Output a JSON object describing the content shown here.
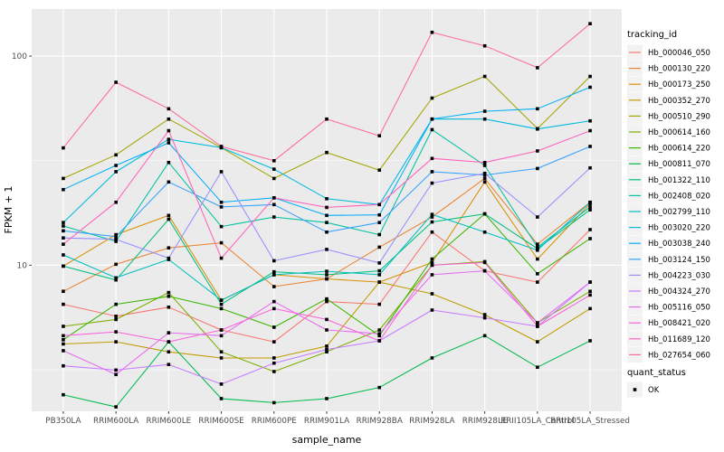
{
  "figure": {
    "background": "#FFFFFF",
    "panel_background": "#EBEBEB",
    "gridline_color": "#FFFFFF",
    "axis_text_color": "#4D4D4D",
    "tick_color": "#333333"
  },
  "chart_data": {
    "type": "line",
    "title": "",
    "xlabel": "sample_name",
    "ylabel": "FPKM + 1",
    "y_scale": "log10",
    "ylim": [
      2,
      168
    ],
    "y_breaks": [
      10,
      100
    ],
    "y_break_labels": [
      "10",
      "100"
    ],
    "y_minor_breaks": [
      3.162,
      31.62
    ],
    "grid": true,
    "legend_position": "right",
    "marker": {
      "shape": "square",
      "color": "#000000",
      "size": 3.6
    },
    "legend": {
      "color_title": "tracking_id",
      "shape_title": "quant_status",
      "shape_items": [
        "OK"
      ]
    },
    "categories": [
      "PB350LA",
      "RRIM600LA",
      "RRIM600LE",
      "RRIM600SE",
      "RRIM600PE",
      "RRIM901LA",
      "RRIM928BA",
      "RRIM928LA",
      "RRIM928LE",
      "RRII105LA_Control",
      "RRII105LA_Stressed"
    ],
    "series": [
      {
        "name": "Hb_000046_050",
        "color": "#F8766D",
        "values": [
          6.5,
          5.7,
          6.3,
          4.9,
          4.3,
          6.7,
          6.5,
          14.4,
          9.4,
          8.3,
          14.8
        ]
      },
      {
        "name": "Hb_000130_220",
        "color": "#EA8331",
        "values": [
          7.5,
          10.1,
          12.1,
          12.8,
          7.9,
          8.6,
          12.2,
          17.0,
          26.0,
          12.6,
          20.0
        ]
      },
      {
        "name": "Hb_000173_250",
        "color": "#D89000",
        "values": [
          9.9,
          14.0,
          17.3,
          6.8,
          9.0,
          8.6,
          8.3,
          10.3,
          25.0,
          10.7,
          19.7
        ]
      },
      {
        "name": "Hb_000352_270",
        "color": "#C09B00",
        "values": [
          4.2,
          4.3,
          3.85,
          3.6,
          3.6,
          4.1,
          8.3,
          7.3,
          5.8,
          4.3,
          6.2
        ]
      },
      {
        "name": "Hb_000510_290",
        "color": "#A3A500",
        "values": [
          26.0,
          33.7,
          50.0,
          36.5,
          26.0,
          34.6,
          28.5,
          63.0,
          80.0,
          45.0,
          80.0
        ]
      },
      {
        "name": "Hb_000614_160",
        "color": "#7CAE00",
        "values": [
          5.1,
          5.5,
          7.4,
          3.85,
          3.1,
          3.85,
          4.9,
          10.0,
          10.4,
          5.3,
          7.5
        ]
      },
      {
        "name": "Hb_000614_220",
        "color": "#39B600",
        "values": [
          4.4,
          6.5,
          7.1,
          6.2,
          5.05,
          6.9,
          4.6,
          10.7,
          17.6,
          9.1,
          13.4
        ]
      },
      {
        "name": "Hb_000811_070",
        "color": "#00BB4E",
        "values": [
          2.4,
          2.1,
          4.3,
          2.3,
          2.2,
          2.3,
          2.6,
          3.6,
          4.6,
          3.25,
          4.35
        ]
      },
      {
        "name": "Hb_001322_110",
        "color": "#00BF7D",
        "values": [
          9.9,
          8.5,
          16.6,
          6.5,
          9.3,
          9.0,
          9.4,
          16.1,
          17.6,
          12.0,
          18.4
        ]
      },
      {
        "name": "Hb_002408_020",
        "color": "#00C1A3",
        "values": [
          15.4,
          13.0,
          31.0,
          15.3,
          17.0,
          16.0,
          14.0,
          44.5,
          30.0,
          12.2,
          19.0
        ]
      },
      {
        "name": "Hb_002799_110",
        "color": "#00BFC4",
        "values": [
          11.2,
          8.7,
          10.65,
          6.8,
          9.0,
          9.35,
          9.0,
          17.5,
          14.4,
          11.8,
          20.0
        ]
      },
      {
        "name": "Hb_003020_220",
        "color": "#00BAE0",
        "values": [
          16.0,
          28.0,
          40.0,
          36.5,
          28.8,
          20.8,
          19.5,
          50.0,
          50.0,
          44.8,
          49.0
        ]
      },
      {
        "name": "Hb_003038_240",
        "color": "#00B0F6",
        "values": [
          23.0,
          30.0,
          38.5,
          20.0,
          21.0,
          17.3,
          17.4,
          50.0,
          54.5,
          56.0,
          71.0
        ]
      },
      {
        "name": "Hb_003124_150",
        "color": "#35A2FF",
        "values": [
          14.6,
          13.7,
          25.0,
          19.0,
          19.5,
          14.4,
          16.0,
          28.0,
          27.0,
          29.0,
          37.0
        ]
      },
      {
        "name": "Hb_004223_030",
        "color": "#9590FF",
        "values": [
          13.5,
          13.3,
          10.8,
          28.0,
          10.5,
          11.9,
          10.25,
          24.7,
          27.5,
          17.0,
          29.2
        ]
      },
      {
        "name": "Hb_004324_270",
        "color": "#C77CFF",
        "values": [
          3.3,
          3.15,
          3.35,
          2.7,
          3.4,
          3.95,
          4.35,
          6.1,
          5.6,
          5.1,
          8.3
        ]
      },
      {
        "name": "Hb_005116_050",
        "color": "#E76BF3",
        "values": [
          3.9,
          3.0,
          4.75,
          4.6,
          6.7,
          4.9,
          4.7,
          9.0,
          9.4,
          5.3,
          8.3
        ]
      },
      {
        "name": "Hb_008421_020",
        "color": "#FA62DB",
        "values": [
          4.6,
          4.8,
          4.3,
          4.9,
          6.2,
          5.5,
          4.35,
          10.0,
          10.3,
          5.1,
          7.2
        ]
      },
      {
        "name": "Hb_011689_120",
        "color": "#FF62BC",
        "values": [
          12.6,
          20.0,
          44.0,
          10.8,
          21.0,
          18.9,
          19.5,
          32.4,
          31.0,
          35.2,
          44.0
        ]
      },
      {
        "name": "Hb_027654_060",
        "color": "#FF6A98",
        "values": [
          36.4,
          75.0,
          56.0,
          37.0,
          31.6,
          50.0,
          41.6,
          130.0,
          112.0,
          88.0,
          143.0
        ]
      }
    ]
  }
}
